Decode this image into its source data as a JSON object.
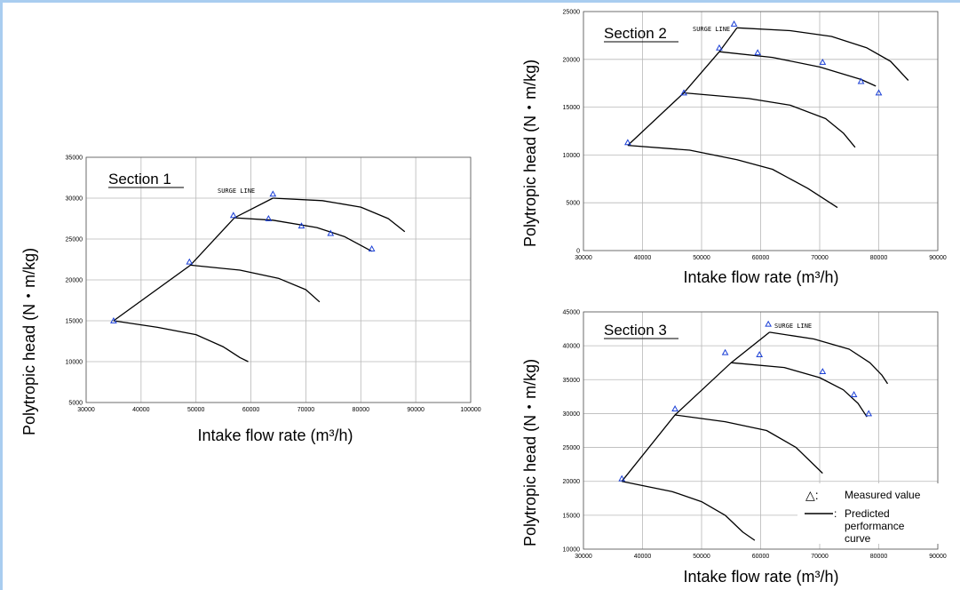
{
  "legend": {
    "measured_symbol": "△:",
    "measured_label": "Measured value",
    "predicted_marker": ":",
    "predicted_label_lines": [
      "Predicted",
      "performance",
      "curve"
    ]
  },
  "chart_data": [
    {
      "type": "line",
      "title": "Section 1",
      "surge_label": "SURGE LINE",
      "xlabel": "Intake flow rate (m³/h)",
      "ylabel": "Polytropic head (N・m/kg)",
      "xlim": [
        30000,
        100000
      ],
      "ylim": [
        5000,
        35000
      ],
      "xticks": [
        30000,
        40000,
        50000,
        60000,
        70000,
        80000,
        90000,
        100000
      ],
      "yticks": [
        5000,
        10000,
        15000,
        20000,
        25000,
        30000,
        35000
      ],
      "grid": true,
      "surge_line": [
        [
          35000,
          15000
        ],
        [
          49000,
          21800
        ],
        [
          57000,
          27600
        ],
        [
          64000,
          30000
        ]
      ],
      "curves": [
        [
          [
            35000,
            15000
          ],
          [
            43000,
            14200
          ],
          [
            50000,
            13300
          ],
          [
            55000,
            11800
          ],
          [
            58000,
            10500
          ],
          [
            59500,
            10000
          ]
        ],
        [
          [
            49000,
            21800
          ],
          [
            58000,
            21200
          ],
          [
            65000,
            20200
          ],
          [
            70000,
            18800
          ],
          [
            72500,
            17300
          ]
        ],
        [
          [
            57000,
            27600
          ],
          [
            64000,
            27300
          ],
          [
            72000,
            26400
          ],
          [
            77000,
            25300
          ],
          [
            82000,
            23500
          ]
        ],
        [
          [
            64000,
            30000
          ],
          [
            73000,
            29700
          ],
          [
            80000,
            28900
          ],
          [
            85000,
            27500
          ],
          [
            88000,
            25900
          ]
        ]
      ],
      "measured": [
        [
          35000,
          15000
        ],
        [
          48800,
          22200
        ],
        [
          56800,
          27900
        ],
        [
          63200,
          27500
        ],
        [
          64000,
          30500
        ],
        [
          69200,
          26600
        ],
        [
          74500,
          25700
        ],
        [
          82000,
          23800
        ]
      ]
    },
    {
      "type": "line",
      "title": "Section 2",
      "surge_label": "SURGE LINE",
      "xlabel": "Intake flow rate (m³/h)",
      "ylabel": "Polytropic head (N・m/kg)",
      "xlim": [
        30000,
        90000
      ],
      "ylim": [
        0,
        25000
      ],
      "xticks": [
        30000,
        40000,
        50000,
        60000,
        70000,
        80000,
        90000
      ],
      "yticks": [
        0,
        5000,
        10000,
        15000,
        20000,
        25000
      ],
      "grid": true,
      "surge_line": [
        [
          37500,
          11000
        ],
        [
          47000,
          16500
        ],
        [
          53000,
          20800
        ],
        [
          56000,
          23300
        ]
      ],
      "curves": [
        [
          [
            37500,
            11000
          ],
          [
            48000,
            10500
          ],
          [
            56000,
            9500
          ],
          [
            62000,
            8500
          ],
          [
            68000,
            6500
          ],
          [
            73000,
            4500
          ]
        ],
        [
          [
            47000,
            16500
          ],
          [
            58000,
            15900
          ],
          [
            65000,
            15200
          ],
          [
            71000,
            13800
          ],
          [
            74000,
            12300
          ],
          [
            76000,
            10800
          ]
        ],
        [
          [
            53000,
            20800
          ],
          [
            62000,
            20200
          ],
          [
            70000,
            19200
          ],
          [
            77000,
            17900
          ],
          [
            79500,
            17200
          ]
        ],
        [
          [
            56000,
            23300
          ],
          [
            65000,
            23000
          ],
          [
            72000,
            22400
          ],
          [
            78000,
            21200
          ],
          [
            82000,
            19800
          ],
          [
            85000,
            17800
          ]
        ]
      ],
      "measured": [
        [
          37500,
          11300
        ],
        [
          47000,
          16500
        ],
        [
          53000,
          21200
        ],
        [
          55500,
          23700
        ],
        [
          59500,
          20700
        ],
        [
          70500,
          19700
        ],
        [
          77000,
          17700
        ],
        [
          80000,
          16500
        ]
      ]
    },
    {
      "type": "line",
      "title": "Section 3",
      "surge_label": "SURGE LINE",
      "xlabel": "Intake flow rate (m³/h)",
      "ylabel": "Polytropic head (N・m/kg)",
      "xlim": [
        30000,
        90000
      ],
      "ylim": [
        10000,
        45000
      ],
      "xticks": [
        30000,
        40000,
        50000,
        60000,
        70000,
        80000,
        90000
      ],
      "yticks": [
        10000,
        15000,
        20000,
        25000,
        30000,
        35000,
        40000,
        45000
      ],
      "grid": true,
      "surge_line": [
        [
          36500,
          20000
        ],
        [
          45500,
          29800
        ],
        [
          55000,
          37500
        ],
        [
          61500,
          42000
        ]
      ],
      "curves": [
        [
          [
            36500,
            20000
          ],
          [
            45000,
            18500
          ],
          [
            50000,
            17000
          ],
          [
            54000,
            15000
          ],
          [
            57000,
            12500
          ],
          [
            59000,
            11300
          ]
        ],
        [
          [
            45500,
            29800
          ],
          [
            54000,
            28800
          ],
          [
            61000,
            27500
          ],
          [
            66000,
            25000
          ],
          [
            70500,
            21200
          ]
        ],
        [
          [
            55000,
            37500
          ],
          [
            64000,
            36800
          ],
          [
            70000,
            35300
          ],
          [
            74000,
            33500
          ],
          [
            76500,
            31500
          ],
          [
            78000,
            29500
          ]
        ],
        [
          [
            61500,
            42000
          ],
          [
            69000,
            41000
          ],
          [
            75000,
            39500
          ],
          [
            78500,
            37500
          ],
          [
            80500,
            35700
          ],
          [
            81500,
            34400
          ]
        ]
      ],
      "measured": [
        [
          36500,
          20400
        ],
        [
          45500,
          30700
        ],
        [
          54000,
          39000
        ],
        [
          59800,
          38700
        ],
        [
          61300,
          43200
        ],
        [
          70500,
          36200
        ],
        [
          75800,
          32800
        ],
        [
          78300,
          30000
        ]
      ]
    }
  ]
}
